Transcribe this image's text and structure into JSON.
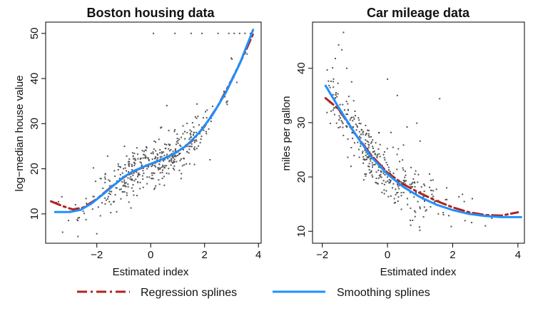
{
  "legend": {
    "position": "bottom",
    "items": [
      {
        "label": "Regression splines",
        "color": "#B22222",
        "style": "dash-dot"
      },
      {
        "label": "Smoothing splines",
        "color": "#1E90FF",
        "style": "solid"
      }
    ]
  },
  "chart_data": [
    {
      "type": "scatter",
      "title": "Boston housing data",
      "xlabel": "Estimated index",
      "ylabel": "log−median house value",
      "xlim": [
        -3.9,
        4.1
      ],
      "ylim": [
        3.5,
        52.5
      ],
      "xticks": [
        -2,
        0,
        2,
        4
      ],
      "xtick_labels": [
        "−2",
        "0",
        "2",
        "4"
      ],
      "yticks": [
        10,
        20,
        30,
        40,
        50
      ],
      "ytick_labels": [
        "10",
        "20",
        "30",
        "40",
        "50"
      ],
      "grid": false,
      "point_color": "#555555",
      "series": [
        {
          "name": "Regression splines",
          "color": "#B22222",
          "style": "dash-dot",
          "points": [
            [
              -3.7,
              12.8
            ],
            [
              -3.3,
              11.8
            ],
            [
              -2.9,
              11.0
            ],
            [
              -2.5,
              11.4
            ],
            [
              -2.0,
              13.3
            ],
            [
              -1.5,
              15.8
            ],
            [
              -1.0,
              18.1
            ],
            [
              -0.5,
              19.8
            ],
            [
              0,
              21.0
            ],
            [
              0.5,
              22.3
            ],
            [
              1.0,
              23.8
            ],
            [
              1.5,
              26.0
            ],
            [
              2.0,
              29.4
            ],
            [
              2.5,
              34.0
            ],
            [
              3.0,
              39.6
            ],
            [
              3.5,
              45.8
            ],
            [
              3.8,
              49.9
            ]
          ]
        },
        {
          "name": "Smoothing splines",
          "color": "#1E90FF",
          "style": "solid",
          "points": [
            [
              -3.55,
              10.4
            ],
            [
              -3.0,
              10.4
            ],
            [
              -2.6,
              10.9
            ],
            [
              -2.2,
              12.3
            ],
            [
              -1.8,
              14.2
            ],
            [
              -1.4,
              16.2
            ],
            [
              -1.0,
              18.2
            ],
            [
              -0.6,
              19.6
            ],
            [
              -0.2,
              20.6
            ],
            [
              0.3,
              21.8
            ],
            [
              0.8,
              23.1
            ],
            [
              1.3,
              25.0
            ],
            [
              1.8,
              28.0
            ],
            [
              2.3,
              32.0
            ],
            [
              2.8,
              37.0
            ],
            [
              3.3,
              43.2
            ],
            [
              3.8,
              50.8
            ]
          ]
        }
      ],
      "scatter_model": {
        "n": 430,
        "seed": 11,
        "x_range": [
          -3.5,
          3.9
        ],
        "x_center": 0.1,
        "x_spread": 1.25,
        "noise": 2.6,
        "curve": [
          [
            -3.55,
            10.4
          ],
          [
            -3.0,
            10.4
          ],
          [
            -2.6,
            10.9
          ],
          [
            -2.2,
            12.3
          ],
          [
            -1.8,
            14.2
          ],
          [
            -1.4,
            16.2
          ],
          [
            -1.0,
            18.2
          ],
          [
            -0.6,
            19.6
          ],
          [
            -0.2,
            20.6
          ],
          [
            0.3,
            21.8
          ],
          [
            0.8,
            23.1
          ],
          [
            1.3,
            25.0
          ],
          [
            1.8,
            28.0
          ],
          [
            2.3,
            32.0
          ],
          [
            2.8,
            37.0
          ],
          [
            3.3,
            43.2
          ],
          [
            3.8,
            50.8
          ]
        ],
        "cap": 50,
        "extra_points": [
          [
            0.1,
            50
          ],
          [
            0.9,
            50
          ],
          [
            1.5,
            50
          ],
          [
            1.9,
            50
          ],
          [
            2.5,
            50
          ],
          [
            2.9,
            50
          ],
          [
            3.1,
            50
          ],
          [
            3.3,
            50
          ],
          [
            3.5,
            50
          ],
          [
            3.7,
            50
          ],
          [
            -1.6,
            22.8
          ],
          [
            -2.4,
            13.4
          ],
          [
            -2.7,
            5.0
          ],
          [
            -2.0,
            5.6
          ],
          [
            -3.3,
            13.8
          ],
          [
            -3.5,
            12.5
          ],
          [
            1.2,
            29.5
          ],
          [
            0.6,
            34.0
          ],
          [
            2.2,
            22.0
          ],
          [
            0.4,
            29.2
          ]
        ]
      }
    },
    {
      "type": "scatter",
      "title": "Car mileage data",
      "xlabel": "Estimated index",
      "ylabel": "miles per gallon",
      "xlim": [
        -2.3,
        4.2
      ],
      "ylim": [
        7.8,
        48.5
      ],
      "xticks": [
        -2,
        0,
        2,
        4
      ],
      "xtick_labels": [
        "−2",
        "0",
        "2",
        "4"
      ],
      "yticks": [
        10,
        20,
        30,
        40
      ],
      "ytick_labels": [
        "10",
        "20",
        "30",
        "40"
      ],
      "grid": false,
      "point_color": "#555555",
      "series": [
        {
          "name": "Regression splines",
          "color": "#B22222",
          "style": "dash-dot",
          "points": [
            [
              -1.9,
              34.5
            ],
            [
              -1.5,
              32.5
            ],
            [
              -1.0,
              28.0
            ],
            [
              -0.5,
              24.0
            ],
            [
              0,
              20.8
            ],
            [
              0.5,
              18.6
            ],
            [
              1.0,
              17.0
            ],
            [
              1.5,
              15.6
            ],
            [
              2.0,
              14.4
            ],
            [
              2.5,
              13.5
            ],
            [
              3.0,
              13.0
            ],
            [
              3.5,
              12.9
            ],
            [
              4.0,
              13.5
            ]
          ]
        },
        {
          "name": "Smoothing splines",
          "color": "#1E90FF",
          "style": "solid",
          "points": [
            [
              -1.9,
              36.8
            ],
            [
              -1.5,
              32.8
            ],
            [
              -1.0,
              28.0
            ],
            [
              -0.5,
              23.7
            ],
            [
              0,
              20.5
            ],
            [
              0.5,
              18.1
            ],
            [
              1.0,
              16.3
            ],
            [
              1.5,
              14.9
            ],
            [
              2.0,
              13.9
            ],
            [
              2.5,
              13.2
            ],
            [
              3.0,
              12.8
            ],
            [
              3.5,
              12.6
            ],
            [
              4.0,
              12.6
            ],
            [
              4.1,
              12.6
            ]
          ]
        }
      ],
      "scatter_model": {
        "n": 392,
        "seed": 29,
        "x_range": [
          -1.9,
          4.0
        ],
        "x_center": -0.4,
        "x_spread": 1.05,
        "noise": 2.4,
        "curve": [
          [
            -1.9,
            36.8
          ],
          [
            -1.5,
            32.8
          ],
          [
            -1.0,
            28.0
          ],
          [
            -0.5,
            23.7
          ],
          [
            0,
            20.5
          ],
          [
            0.5,
            18.1
          ],
          [
            1.0,
            16.3
          ],
          [
            1.5,
            14.9
          ],
          [
            2.0,
            13.9
          ],
          [
            2.5,
            13.2
          ],
          [
            3.0,
            12.8
          ],
          [
            3.5,
            12.6
          ],
          [
            4.0,
            12.6
          ],
          [
            4.1,
            12.6
          ]
        ],
        "cap": 47,
        "extra_points": [
          [
            -1.35,
            46.6
          ],
          [
            -1.5,
            44.3
          ],
          [
            -1.4,
            43.4
          ],
          [
            -1.6,
            41.8
          ],
          [
            -1.25,
            40.0
          ],
          [
            -1.1,
            37.5
          ],
          [
            0.0,
            38.0
          ],
          [
            0.3,
            35.0
          ],
          [
            1.6,
            34.4
          ],
          [
            0.9,
            29.9
          ],
          [
            0.6,
            29.2
          ],
          [
            1.0,
            26.6
          ],
          [
            2.3,
            16.8
          ],
          [
            2.6,
            16.0
          ],
          [
            3.2,
            12.4
          ],
          [
            3.0,
            11.0
          ]
        ]
      }
    }
  ]
}
